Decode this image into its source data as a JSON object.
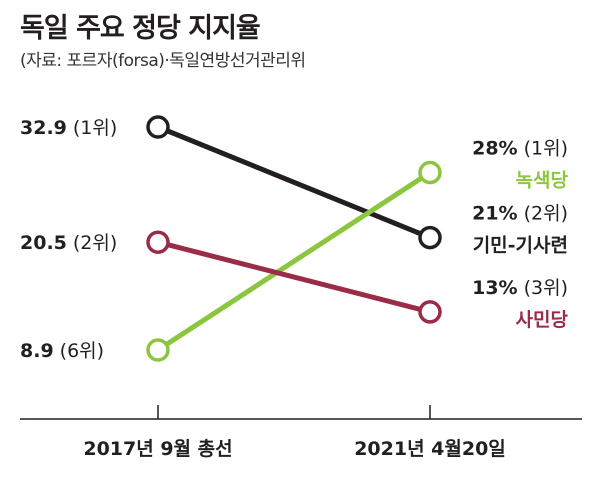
{
  "chart_data": {
    "type": "line",
    "title": "독일 주요 정당 지지율",
    "subtitle": "(자료: 포르자(forsa)·독일연방선거관리위",
    "categories": [
      "2017년 9월 총선",
      "2021년 4월20일"
    ],
    "series": [
      {
        "name": "기민-기사련",
        "values": [
          32.9,
          21
        ],
        "start_label": "32.9",
        "start_rank": "(1위)",
        "end_label": "21%",
        "end_rank": "(2위)",
        "color": "#231f20"
      },
      {
        "name": "녹색당",
        "values": [
          8.9,
          28
        ],
        "start_label": "8.9",
        "start_rank": "(6위)",
        "end_label": "28%",
        "end_rank": "(1위)",
        "color": "#8cc63f"
      },
      {
        "name": "사민당",
        "values": [
          20.5,
          13
        ],
        "start_label": "20.5",
        "start_rank": "(2위)",
        "end_label": "13%",
        "end_rank": "(3위)",
        "color": "#9b2c48"
      }
    ],
    "xlabel": "",
    "ylabel": "",
    "ylim": [
      8.9,
      32.9
    ]
  }
}
